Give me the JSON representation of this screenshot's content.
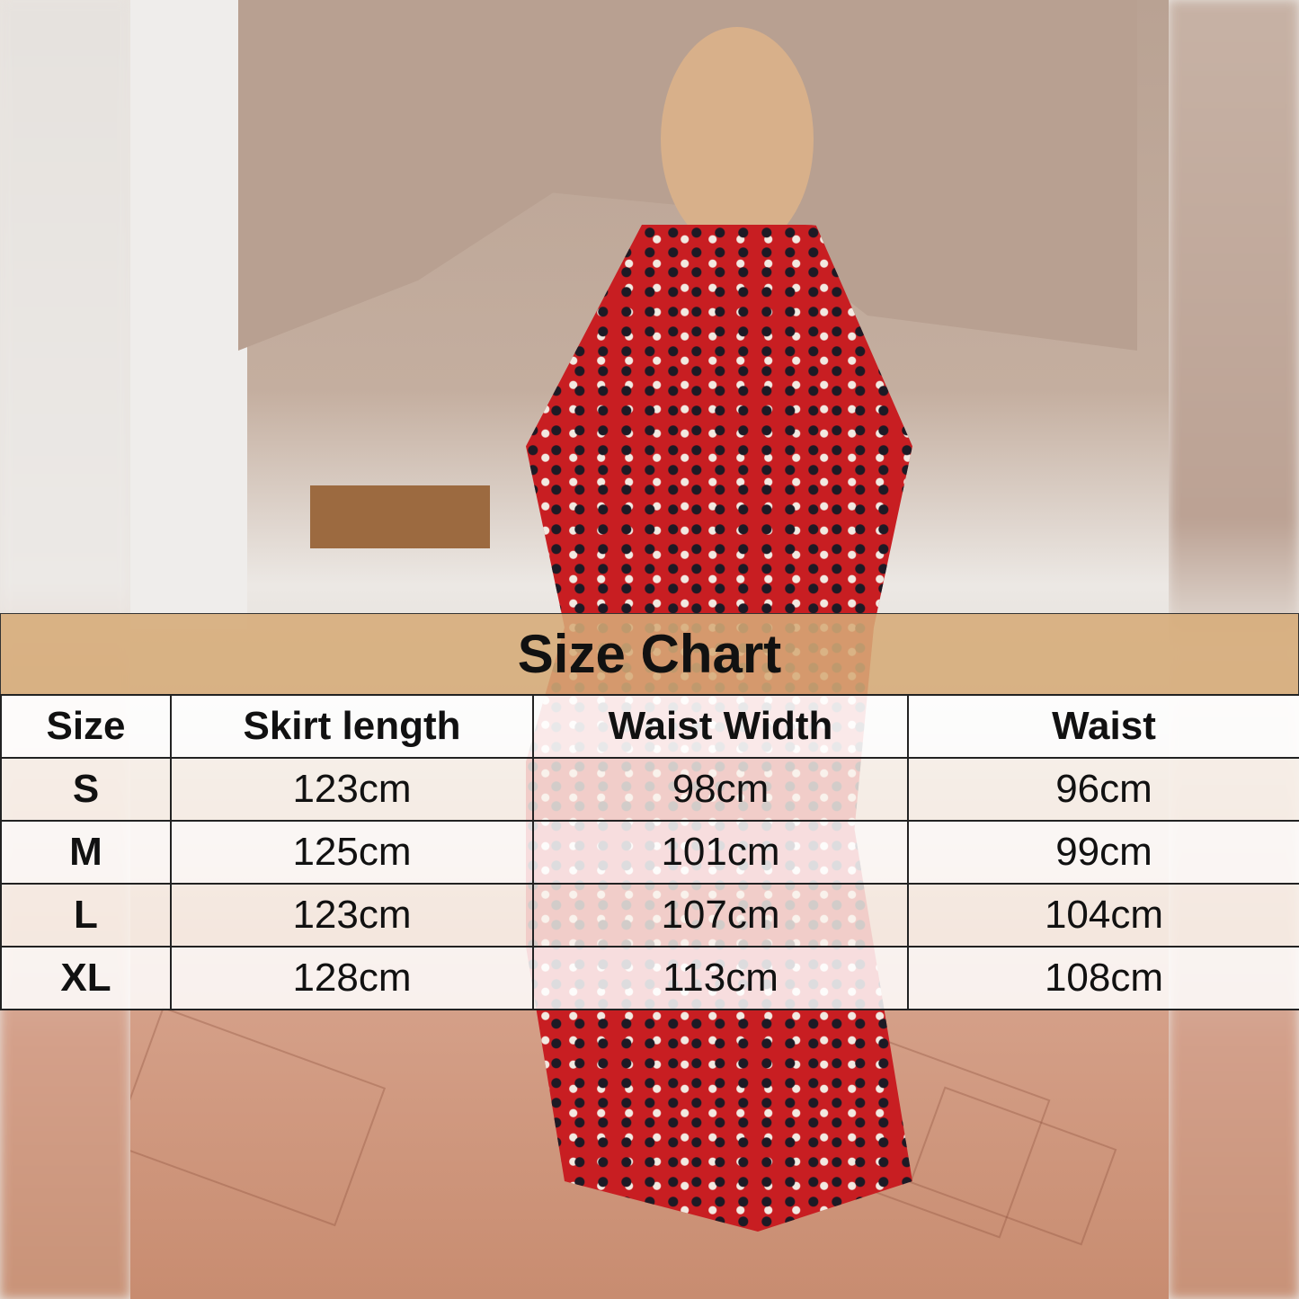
{
  "size_chart": {
    "title": "Size Chart",
    "columns": [
      "Size",
      "Skirt length",
      "Waist Width",
      "Waist"
    ],
    "rows": [
      [
        "S",
        "123cm",
        "98cm",
        "96cm"
      ],
      [
        "M",
        "125cm",
        "101cm",
        "99cm"
      ],
      [
        "L",
        "123cm",
        "107cm",
        "104cm"
      ],
      [
        "XL",
        "128cm",
        "113cm",
        "108cm"
      ]
    ],
    "header_color": "#d6ab78"
  }
}
